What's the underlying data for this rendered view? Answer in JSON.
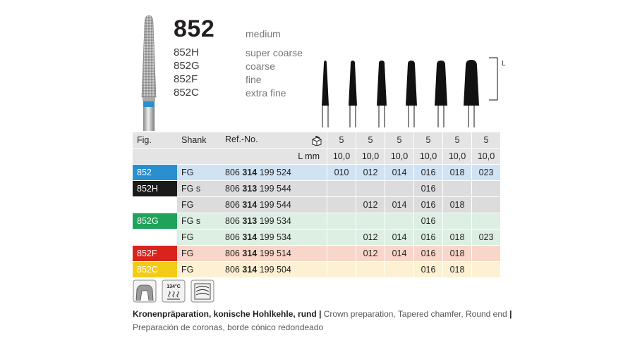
{
  "product": {
    "number": "852",
    "grit_label": "medium",
    "variants": [
      {
        "code": "852H",
        "grit": "super coarse"
      },
      {
        "code": "852G",
        "grit": "coarse"
      },
      {
        "code": "852F",
        "grit": "fine"
      },
      {
        "code": "852C",
        "grit": "extra fine"
      }
    ]
  },
  "dimension_label": "L",
  "colors": {
    "852": "#2a8fcf",
    "852H": "#1a1a1a",
    "852G": "#1fa35b",
    "852F": "#d9241d",
    "852C": "#f2cc16",
    "row_852": "#cfe3f4",
    "row_852H": "#dcdcdc",
    "row_852G": "#dcefe2",
    "row_852F": "#f8d6c9",
    "row_852C": "#fcf2d3"
  },
  "table": {
    "headers": {
      "fig": "Fig.",
      "shank": "Shank",
      "ref": "Ref.-No.",
      "pack_icon": "package-icon"
    },
    "pack_qty": [
      "5",
      "5",
      "5",
      "5",
      "5",
      "5"
    ],
    "lmm_label": "L mm",
    "lengths": [
      "10,0",
      "10,0",
      "10,0",
      "10,0",
      "10,0",
      "10,0"
    ],
    "rows": [
      {
        "fig": "852",
        "shank": "FG",
        "ref_pre": "806",
        "ref_bold": "314",
        "ref_post": "199 524",
        "sizes": [
          "010",
          "012",
          "014",
          "016",
          "018",
          "023"
        ],
        "color_key": "852"
      },
      {
        "fig": "852H",
        "shank": "FG s",
        "ref_pre": "806",
        "ref_bold": "313",
        "ref_post": "199 544",
        "sizes": [
          "",
          "",
          "",
          "016",
          "",
          ""
        ],
        "color_key": "852H"
      },
      {
        "fig": "",
        "shank": "FG",
        "ref_pre": "806",
        "ref_bold": "314",
        "ref_post": "199 544",
        "sizes": [
          "",
          "012",
          "014",
          "016",
          "018",
          ""
        ],
        "color_key": "852H"
      },
      {
        "fig": "852G",
        "shank": "FG s",
        "ref_pre": "806",
        "ref_bold": "313",
        "ref_post": "199 534",
        "sizes": [
          "",
          "",
          "",
          "016",
          "",
          ""
        ],
        "color_key": "852G"
      },
      {
        "fig": "",
        "shank": "FG",
        "ref_pre": "806",
        "ref_bold": "314",
        "ref_post": "199 534",
        "sizes": [
          "",
          "012",
          "014",
          "016",
          "018",
          "023"
        ],
        "color_key": "852G"
      },
      {
        "fig": "852F",
        "shank": "FG",
        "ref_pre": "806",
        "ref_bold": "314",
        "ref_post": "199 514",
        "sizes": [
          "",
          "012",
          "014",
          "016",
          "018",
          ""
        ],
        "color_key": "852F"
      },
      {
        "fig": "852C",
        "shank": "FG",
        "ref_pre": "806",
        "ref_bold": "314",
        "ref_post": "199 504",
        "sizes": [
          "",
          "",
          "",
          "016",
          "018",
          ""
        ],
        "color_key": "852C"
      }
    ]
  },
  "icons": {
    "crown": "crown-icon",
    "sterilize": {
      "name": "sterilization-icon",
      "temp": "134°C"
    },
    "wave": "thermo-disinfector-icon"
  },
  "caption": {
    "de": "Kronenpräparation, konische Hohlkehle, rund",
    "sep": "|",
    "en": "Crown preparation, Tapered chamfer, Round end",
    "es": "Preparación de coronas, borde cónico redondeado"
  }
}
